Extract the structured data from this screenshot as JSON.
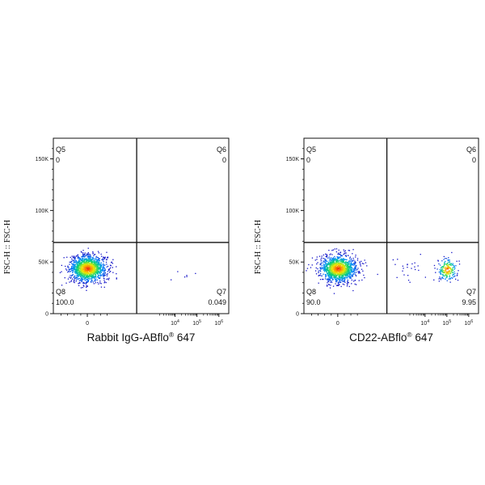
{
  "chart_data": [
    {
      "type": "scatter",
      "ylabel": "FSC-H :: FSC-H",
      "xlabel_main": "Rabbit IgG-ABflo",
      "xlabel_sup": "®",
      "xlabel_tail": " 647",
      "y_ticks": [
        {
          "value": 0,
          "label": "0"
        },
        {
          "value": 50000,
          "label": "50K"
        },
        {
          "value": 100000,
          "label": "100K"
        },
        {
          "value": 150000,
          "label": "150K"
        }
      ],
      "ylim": [
        0,
        170000
      ],
      "x_ticks": [
        {
          "value": 0,
          "label": "0",
          "sup": ""
        },
        {
          "value": 4,
          "label": "10",
          "sup": "4"
        },
        {
          "value": 5,
          "label": "10",
          "sup": "5"
        },
        {
          "value": 6,
          "label": "10",
          "sup": "6"
        }
      ],
      "gate_x": 2.25,
      "gate_y": 69000,
      "quadrants": [
        {
          "name": "Q5",
          "value": "0",
          "pos": "top-left"
        },
        {
          "name": "Q6",
          "value": "0",
          "pos": "top-right"
        },
        {
          "name": "Q8",
          "value": "100.0",
          "pos": "bottom-left"
        },
        {
          "name": "Q7",
          "value": "0.049",
          "pos": "bottom-right"
        }
      ],
      "populations": [
        {
          "cx": 0,
          "cy": 44000,
          "sx": 0.42,
          "sy": 6500,
          "n": 1400
        },
        {
          "cx": 4.2,
          "cy": 36000,
          "sx": 0.5,
          "sy": 3000,
          "n": 6
        }
      ]
    },
    {
      "type": "scatter",
      "ylabel": "FSC-H :: FSC-H",
      "xlabel_main": "CD22-ABflo",
      "xlabel_sup": "®",
      "xlabel_tail": " 647",
      "y_ticks": [
        {
          "value": 0,
          "label": "0"
        },
        {
          "value": 50000,
          "label": "50K"
        },
        {
          "value": 100000,
          "label": "100K"
        },
        {
          "value": 150000,
          "label": "150K"
        }
      ],
      "ylim": [
        0,
        170000
      ],
      "x_ticks": [
        {
          "value": 0,
          "label": "0",
          "sup": ""
        },
        {
          "value": 4,
          "label": "10",
          "sup": "4"
        },
        {
          "value": 5,
          "label": "10",
          "sup": "5"
        },
        {
          "value": 6,
          "label": "10",
          "sup": "6"
        }
      ],
      "gate_x": 2.25,
      "gate_y": 69000,
      "quadrants": [
        {
          "name": "Q5",
          "value": "0",
          "pos": "top-left"
        },
        {
          "name": "Q6",
          "value": "0",
          "pos": "top-right"
        },
        {
          "name": "Q8",
          "value": "90.0",
          "pos": "bottom-left"
        },
        {
          "name": "Q7",
          "value": "9.95",
          "pos": "bottom-right"
        }
      ],
      "populations": [
        {
          "cx": 0,
          "cy": 44000,
          "sx": 0.42,
          "sy": 6500,
          "n": 1300
        },
        {
          "cx": 5.0,
          "cy": 43000,
          "sx": 0.22,
          "sy": 5500,
          "n": 200
        },
        {
          "cx": 3.2,
          "cy": 46000,
          "sx": 0.7,
          "sy": 6000,
          "n": 25
        }
      ]
    }
  ]
}
